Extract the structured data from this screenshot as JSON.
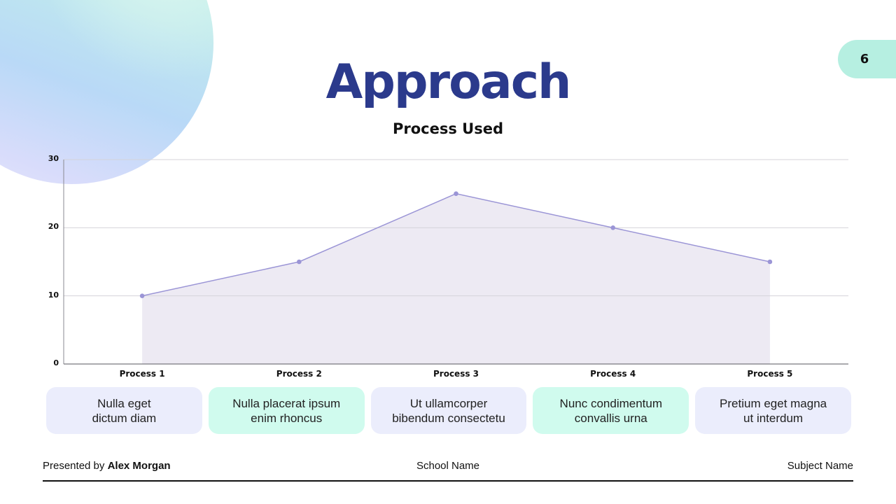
{
  "slide": {
    "page_number": "6",
    "title": "Approach",
    "subtitle": "Process Used"
  },
  "colors": {
    "title": "#2b3a8c",
    "line": "#9b95d6",
    "area_fill": "#ebe8f2",
    "card_lavender": "#ebedfc",
    "card_mint": "#d0fbee",
    "badge": "#b6efe1"
  },
  "chart_data": {
    "type": "area",
    "title": "Process Used",
    "categories": [
      "Process 1",
      "Process 2",
      "Process 3",
      "Process 4",
      "Process 5"
    ],
    "series": [
      {
        "name": "Process",
        "values": [
          10,
          15,
          25,
          20,
          15
        ]
      }
    ],
    "xlabel": "",
    "ylabel": "",
    "ylim": [
      0,
      30
    ],
    "yticks": [
      "0",
      "10",
      "20",
      "30"
    ],
    "grid": true,
    "legend": "none"
  },
  "cards": [
    {
      "line1": "Nulla eget",
      "line2": "dictum diam",
      "style": "lavender"
    },
    {
      "line1": "Nulla placerat ipsum",
      "line2": "enim rhoncus",
      "style": "mint"
    },
    {
      "line1": "Ut ullamcorper",
      "line2": "bibendum consectetu",
      "style": "lavender"
    },
    {
      "line1": "Nunc condimentum",
      "line2": "convallis urna",
      "style": "mint"
    },
    {
      "line1": "Pretium eget magna",
      "line2": "ut interdum",
      "style": "lavender"
    }
  ],
  "footer": {
    "presented_by_label": "Presented by ",
    "presenter": "Alex Morgan",
    "school": "School Name",
    "subject": "Subject Name"
  }
}
